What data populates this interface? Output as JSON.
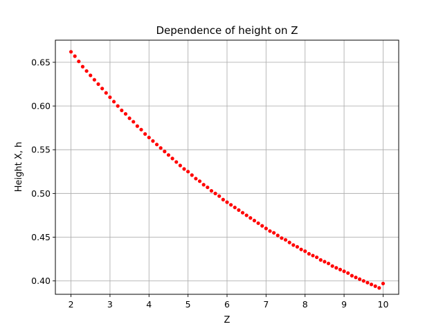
{
  "chart_data": {
    "type": "scatter",
    "title": "Dependence of height on Z",
    "xlabel": "Z",
    "ylabel": "Height X, h",
    "xlim": [
      1.6,
      10.4
    ],
    "ylim": [
      0.3847,
      0.6753
    ],
    "xticks": [
      2,
      3,
      4,
      5,
      6,
      7,
      8,
      9,
      10
    ],
    "xtick_labels": [
      "2",
      "3",
      "4",
      "5",
      "6",
      "7",
      "8",
      "9",
      "10"
    ],
    "yticks": [
      0.4,
      0.45,
      0.5,
      0.55,
      0.6,
      0.65
    ],
    "ytick_labels": [
      "0.40",
      "0.45",
      "0.50",
      "0.55",
      "0.60",
      "0.65"
    ],
    "grid": true,
    "marker_color": "#ff0000",
    "series": [
      {
        "x_start": 2,
        "x_end": 10,
        "count": 81,
        "x": [
          2.0,
          2.1,
          2.2,
          2.3,
          2.4,
          2.5,
          2.6,
          2.7,
          2.8,
          2.9,
          3.0,
          3.1,
          3.2,
          3.3,
          3.4,
          3.5,
          3.6,
          3.7,
          3.8,
          3.9,
          4.0,
          4.1,
          4.2,
          4.3,
          4.4,
          4.5,
          4.6,
          4.7,
          4.8,
          4.9,
          5.0,
          5.1,
          5.2,
          5.3,
          5.4,
          5.5,
          5.6,
          5.7,
          5.8,
          5.9,
          6.0,
          6.1,
          6.2,
          6.3,
          6.4,
          6.5,
          6.6,
          6.7,
          6.8,
          6.9,
          7.0,
          7.1,
          7.2,
          7.3,
          7.4,
          7.5,
          7.6,
          7.7,
          7.8,
          7.9,
          8.0,
          8.1,
          8.2,
          8.3,
          8.4,
          8.5,
          8.6,
          8.7,
          8.8,
          8.9,
          9.0,
          9.1,
          9.2,
          9.3,
          9.4,
          9.5,
          9.6,
          9.7,
          9.8,
          9.9,
          10.0
        ],
        "y": [
          0.662,
          0.657,
          0.651,
          0.645,
          0.64,
          0.635,
          0.63,
          0.625,
          0.62,
          0.615,
          0.61,
          0.605,
          0.6,
          0.595,
          0.591,
          0.586,
          0.582,
          0.577,
          0.573,
          0.568,
          0.564,
          0.56,
          0.556,
          0.552,
          0.548,
          0.544,
          0.54,
          0.536,
          0.532,
          0.528,
          0.525,
          0.521,
          0.517,
          0.514,
          0.51,
          0.507,
          0.503,
          0.5,
          0.497,
          0.493,
          0.49,
          0.487,
          0.484,
          0.481,
          0.478,
          0.475,
          0.472,
          0.469,
          0.466,
          0.463,
          0.46,
          0.457,
          0.455,
          0.452,
          0.449,
          0.447,
          0.444,
          0.441,
          0.439,
          0.436,
          0.434,
          0.431,
          0.429,
          0.427,
          0.424,
          0.422,
          0.42,
          0.417,
          0.415,
          0.413,
          0.411,
          0.409,
          0.406,
          0.404,
          0.402,
          0.4,
          0.398,
          0.396,
          0.394,
          0.392,
          0.397
        ]
      }
    ]
  }
}
